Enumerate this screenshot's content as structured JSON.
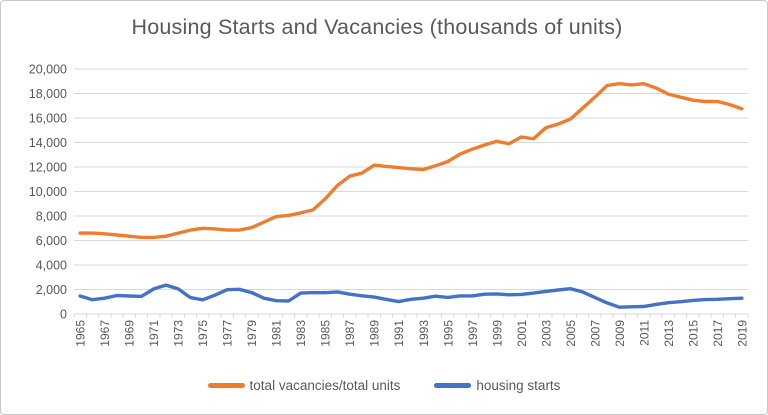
{
  "chart_data": {
    "type": "line",
    "title": "Housing Starts and Vacancies (thousands of units)",
    "x": [
      1965,
      1966,
      1967,
      1968,
      1969,
      1970,
      1971,
      1972,
      1973,
      1974,
      1975,
      1976,
      1977,
      1978,
      1979,
      1980,
      1981,
      1982,
      1983,
      1984,
      1985,
      1986,
      1987,
      1988,
      1989,
      1990,
      1991,
      1992,
      1993,
      1994,
      1995,
      1996,
      1997,
      1998,
      1999,
      2000,
      2001,
      2002,
      2003,
      2004,
      2005,
      2006,
      2007,
      2008,
      2009,
      2010,
      2011,
      2012,
      2013,
      2014,
      2015,
      2016,
      2017,
      2018,
      2019
    ],
    "x_tick_labels_shown": [
      "1965",
      "1967",
      "1969",
      "1971",
      "1973",
      "1975",
      "1977",
      "1979",
      "1981",
      "1983",
      "1985",
      "1987",
      "1989",
      "1991",
      "1993",
      "1995",
      "1997",
      "1999",
      "2001",
      "2003",
      "2005",
      "2007",
      "2009",
      "2011",
      "2013",
      "2015",
      "2017",
      "2019"
    ],
    "series": [
      {
        "name": "total vacancies/total units",
        "color": "#ED7D31",
        "values": [
          6600,
          6600,
          6550,
          6450,
          6350,
          6250,
          6250,
          6350,
          6600,
          6850,
          7000,
          6950,
          6850,
          6850,
          7050,
          7500,
          7950,
          8050,
          8250,
          8500,
          9400,
          10500,
          11250,
          11500,
          12150,
          12050,
          11950,
          11850,
          11800,
          12100,
          12450,
          13050,
          13450,
          13800,
          14100,
          13900,
          14450,
          14300,
          15200,
          15500,
          15900,
          16800,
          17700,
          18650,
          18800,
          18700,
          18800,
          18450,
          17950,
          17700,
          17450,
          17350,
          17350,
          17100,
          16750
        ]
      },
      {
        "name": "housing starts",
        "color": "#4472C4",
        "values": [
          1473,
          1165,
          1292,
          1508,
          1467,
          1434,
          2052,
          2357,
          2045,
          1338,
          1160,
          1538,
          1987,
          2020,
          1745,
          1292,
          1084,
          1062,
          1703,
          1750,
          1742,
          1805,
          1620,
          1488,
          1376,
          1193,
          1014,
          1200,
          1288,
          1457,
          1354,
          1477,
          1474,
          1617,
          1641,
          1569,
          1603,
          1705,
          1848,
          1956,
          2068,
          1801,
          1355,
          906,
          554,
          587,
          609,
          781,
          925,
          1003,
          1112,
          1174,
          1203,
          1250,
          1290
        ]
      }
    ],
    "y_axis": {
      "min": 0,
      "max": 20000,
      "step": 2000,
      "tick_labels": [
        "0",
        "2,000",
        "4,000",
        "6,000",
        "8,000",
        "10,000",
        "12,000",
        "14,000",
        "16,000",
        "18,000",
        "20,000"
      ]
    },
    "grid": "horizontal",
    "legend_position": "bottom"
  },
  "colors": {
    "grid": "#d9d9d9",
    "axis_text": "#595959",
    "title_text": "#595959",
    "background": "#ffffff",
    "frame_border": "#c9c9c9"
  }
}
